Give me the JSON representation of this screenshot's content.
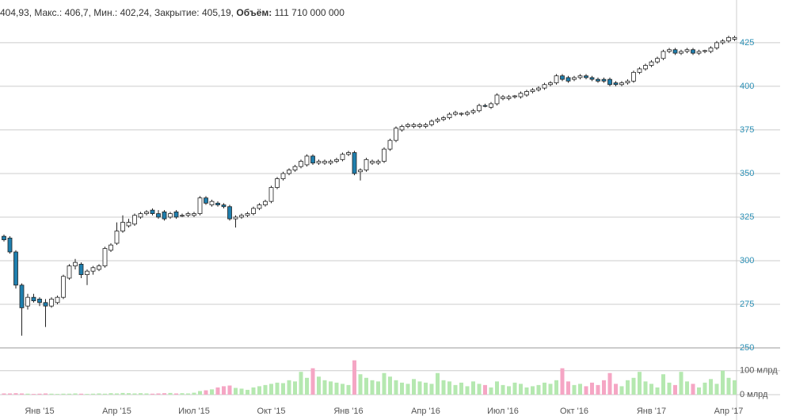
{
  "header": {
    "text": "404,93, Макс.: 406,7, Мин.: 402,24, Закрытие: 405,19,",
    "volume_label": "Объём:",
    "volume_value": "111 710 000 000"
  },
  "chart_data": {
    "type": "candlestick",
    "categories": [
      null,
      null,
      null,
      null,
      null,
      null,
      "Янв '15",
      null,
      null,
      null,
      null,
      null,
      null,
      null,
      null,
      null,
      null,
      null,
      null,
      "Апр '15",
      null,
      null,
      null,
      null,
      null,
      null,
      null,
      null,
      null,
      null,
      null,
      null,
      "Июл '15",
      null,
      null,
      null,
      null,
      null,
      null,
      null,
      null,
      null,
      null,
      null,
      null,
      "Окт '15",
      null,
      null,
      null,
      null,
      null,
      null,
      null,
      null,
      null,
      null,
      null,
      null,
      "Янв '16",
      null,
      null,
      null,
      null,
      null,
      null,
      null,
      null,
      null,
      null,
      null,
      null,
      "Апр '16",
      null,
      null,
      null,
      null,
      null,
      null,
      null,
      null,
      null,
      null,
      null,
      null,
      "Июл '16",
      null,
      null,
      null,
      null,
      null,
      null,
      null,
      null,
      null,
      null,
      null,
      "Окт '16",
      null,
      null,
      null,
      null,
      null,
      null,
      null,
      null,
      null,
      null,
      null,
      null,
      "Янв '17",
      null,
      null,
      null,
      null,
      null,
      null,
      null,
      null,
      null,
      null,
      null,
      null,
      "Апр '17",
      null
    ],
    "candles": [
      [
        314,
        315,
        311,
        312
      ],
      [
        313,
        314,
        304,
        305
      ],
      [
        305,
        306,
        284,
        286
      ],
      [
        286,
        287,
        257,
        273
      ],
      [
        274,
        281,
        272,
        279
      ],
      [
        279,
        281,
        276,
        277
      ],
      [
        278,
        279,
        274,
        276
      ],
      [
        276,
        278,
        262,
        274
      ],
      [
        274,
        279,
        273,
        278
      ],
      [
        276,
        280,
        275,
        279
      ],
      [
        279,
        292,
        278,
        291
      ],
      [
        290,
        298,
        289,
        297
      ],
      [
        297,
        301,
        295,
        299
      ],
      [
        298,
        299,
        290,
        292
      ],
      [
        292,
        295,
        286,
        294
      ],
      [
        294,
        297,
        292,
        296
      ],
      [
        295,
        298,
        294,
        297
      ],
      [
        297,
        308,
        296,
        307
      ],
      [
        306,
        310,
        305,
        309
      ],
      [
        310,
        322,
        309,
        317
      ],
      [
        317,
        326,
        316,
        322
      ],
      [
        320,
        324,
        319,
        322
      ],
      [
        321,
        327,
        320,
        326
      ],
      [
        325,
        328,
        324,
        327
      ],
      [
        327,
        329,
        326,
        328
      ],
      [
        329,
        330,
        326,
        327
      ],
      [
        327,
        329,
        324,
        325
      ],
      [
        328,
        329,
        323,
        324
      ],
      [
        325,
        328,
        324,
        327
      ],
      [
        328,
        329,
        324,
        325
      ],
      [
        326,
        327,
        325,
        326
      ],
      [
        326,
        328,
        325,
        327
      ],
      [
        326,
        328,
        325,
        327
      ],
      [
        327,
        337,
        326,
        336
      ],
      [
        336,
        337,
        332,
        333
      ],
      [
        332,
        335,
        331,
        334
      ],
      [
        333,
        334,
        331,
        332
      ],
      [
        332,
        333,
        330,
        331
      ],
      [
        331,
        332,
        323,
        324
      ],
      [
        324,
        326,
        319,
        325
      ],
      [
        325,
        327,
        324,
        326
      ],
      [
        326,
        328,
        325,
        327
      ],
      [
        327,
        331,
        326,
        330
      ],
      [
        330,
        333,
        329,
        332
      ],
      [
        332,
        335,
        331,
        334
      ],
      [
        334,
        343,
        333,
        342
      ],
      [
        342,
        348,
        341,
        347
      ],
      [
        347,
        351,
        346,
        350
      ],
      [
        350,
        353,
        349,
        352
      ],
      [
        352,
        355,
        351,
        354
      ],
      [
        354,
        358,
        353,
        357
      ],
      [
        355,
        361,
        354,
        360
      ],
      [
        360,
        361,
        355,
        356
      ],
      [
        356,
        358,
        355,
        357
      ],
      [
        356,
        358,
        355,
        357
      ],
      [
        356,
        358,
        355,
        357
      ],
      [
        357,
        359,
        356,
        358
      ],
      [
        358,
        362,
        357,
        361
      ],
      [
        361,
        363,
        360,
        362
      ],
      [
        362,
        363,
        349,
        350
      ],
      [
        351,
        353,
        346,
        352
      ],
      [
        352,
        359,
        351,
        358
      ],
      [
        356,
        358,
        355,
        357
      ],
      [
        356,
        358,
        355,
        357
      ],
      [
        357,
        365,
        356,
        364
      ],
      [
        364,
        370,
        363,
        369
      ],
      [
        369,
        377,
        368,
        376
      ],
      [
        375,
        378,
        374,
        377
      ],
      [
        377,
        379,
        376,
        378
      ],
      [
        377,
        379,
        376,
        378
      ],
      [
        377,
        379,
        376,
        378
      ],
      [
        377,
        379,
        376,
        378
      ],
      [
        378,
        381,
        377,
        380
      ],
      [
        380,
        382,
        379,
        381
      ],
      [
        381,
        383,
        380,
        382
      ],
      [
        382,
        385,
        381,
        384
      ],
      [
        384,
        386,
        383,
        385
      ],
      [
        384,
        385,
        383,
        384.5
      ],
      [
        384,
        386,
        383,
        385
      ],
      [
        385,
        387,
        384,
        386
      ],
      [
        386,
        390,
        385,
        389
      ],
      [
        389,
        390,
        388,
        388.5
      ],
      [
        388,
        391,
        387,
        390
      ],
      [
        390,
        396,
        389,
        395
      ],
      [
        393,
        395,
        392,
        394
      ],
      [
        393,
        395,
        392,
        394
      ],
      [
        394,
        395,
        393,
        394.5
      ],
      [
        394,
        397,
        393,
        396
      ],
      [
        395,
        398,
        394,
        397
      ],
      [
        397,
        399,
        396,
        398
      ],
      [
        398,
        400,
        397,
        399
      ],
      [
        399,
        402,
        398,
        401
      ],
      [
        401,
        403,
        400,
        402
      ],
      [
        402,
        407,
        401,
        406
      ],
      [
        406,
        407,
        403,
        404
      ],
      [
        405,
        406,
        402,
        403
      ],
      [
        404,
        406,
        403,
        405
      ],
      [
        405,
        407,
        404,
        406
      ],
      [
        406,
        407,
        404,
        405
      ],
      [
        405,
        406,
        403,
        404
      ],
      [
        404,
        405,
        402,
        403
      ],
      [
        404,
        405,
        402,
        403
      ],
      [
        404,
        405,
        400,
        401
      ],
      [
        402,
        403,
        400,
        401
      ],
      [
        401,
        403,
        400,
        402
      ],
      [
        402,
        404,
        401,
        403
      ],
      [
        403,
        409,
        402,
        408
      ],
      [
        408,
        411,
        407,
        410
      ],
      [
        410,
        413,
        409,
        412
      ],
      [
        412,
        415,
        411,
        414
      ],
      [
        414,
        417,
        413,
        416
      ],
      [
        416,
        421,
        415,
        420
      ],
      [
        420,
        422,
        419,
        421
      ],
      [
        421,
        422,
        418,
        419
      ],
      [
        419,
        421,
        418,
        420
      ],
      [
        420,
        422,
        419,
        421
      ],
      [
        421,
        422,
        418,
        419
      ],
      [
        419,
        421,
        418,
        420
      ],
      [
        420,
        421,
        419,
        420.5
      ],
      [
        420,
        423,
        419,
        422
      ],
      [
        422,
        426,
        421,
        425
      ],
      [
        425,
        427,
        424,
        426
      ],
      [
        426,
        429,
        425,
        428
      ],
      [
        427,
        429,
        426,
        428
      ]
    ],
    "volume": [
      5,
      5,
      6,
      5,
      4,
      3,
      4,
      5,
      4,
      3,
      4,
      4,
      5,
      4,
      3,
      4,
      5,
      4,
      6,
      5,
      7,
      6,
      5,
      6,
      5,
      4,
      5,
      6,
      7,
      5,
      6,
      5,
      8,
      15,
      18,
      22,
      30,
      35,
      38,
      28,
      25,
      20,
      30,
      35,
      40,
      45,
      50,
      48,
      60,
      55,
      95,
      70,
      110,
      75,
      60,
      55,
      50,
      45,
      40,
      143,
      85,
      70,
      60,
      55,
      90,
      75,
      60,
      50,
      45,
      65,
      55,
      50,
      45,
      90,
      60,
      55,
      40,
      50,
      35,
      55,
      45,
      40,
      30,
      55,
      40,
      35,
      50,
      45,
      30,
      35,
      40,
      50,
      45,
      60,
      110,
      55,
      40,
      45,
      35,
      50,
      40,
      60,
      90,
      45,
      35,
      60,
      70,
      95,
      55,
      45,
      30,
      85,
      50,
      40,
      95,
      55,
      45,
      30,
      50,
      65,
      45,
      100,
      70,
      60
    ],
    "up_color": "#ffffff",
    "down_color": "#1f7fae",
    "volume_up_color": "#b5e8b0",
    "volume_down_color": "#f5a6c4",
    "ylim": [
      250,
      449.5
    ],
    "yticks": [
      250,
      275,
      300,
      325,
      350,
      375,
      400,
      425
    ],
    "y2lim": [
      0,
      175
    ],
    "y2ticks": [
      {
        "value": 0,
        "label": "0 млрд"
      },
      {
        "value": 100,
        "label": "100 млрд"
      }
    ],
    "grid": true
  }
}
